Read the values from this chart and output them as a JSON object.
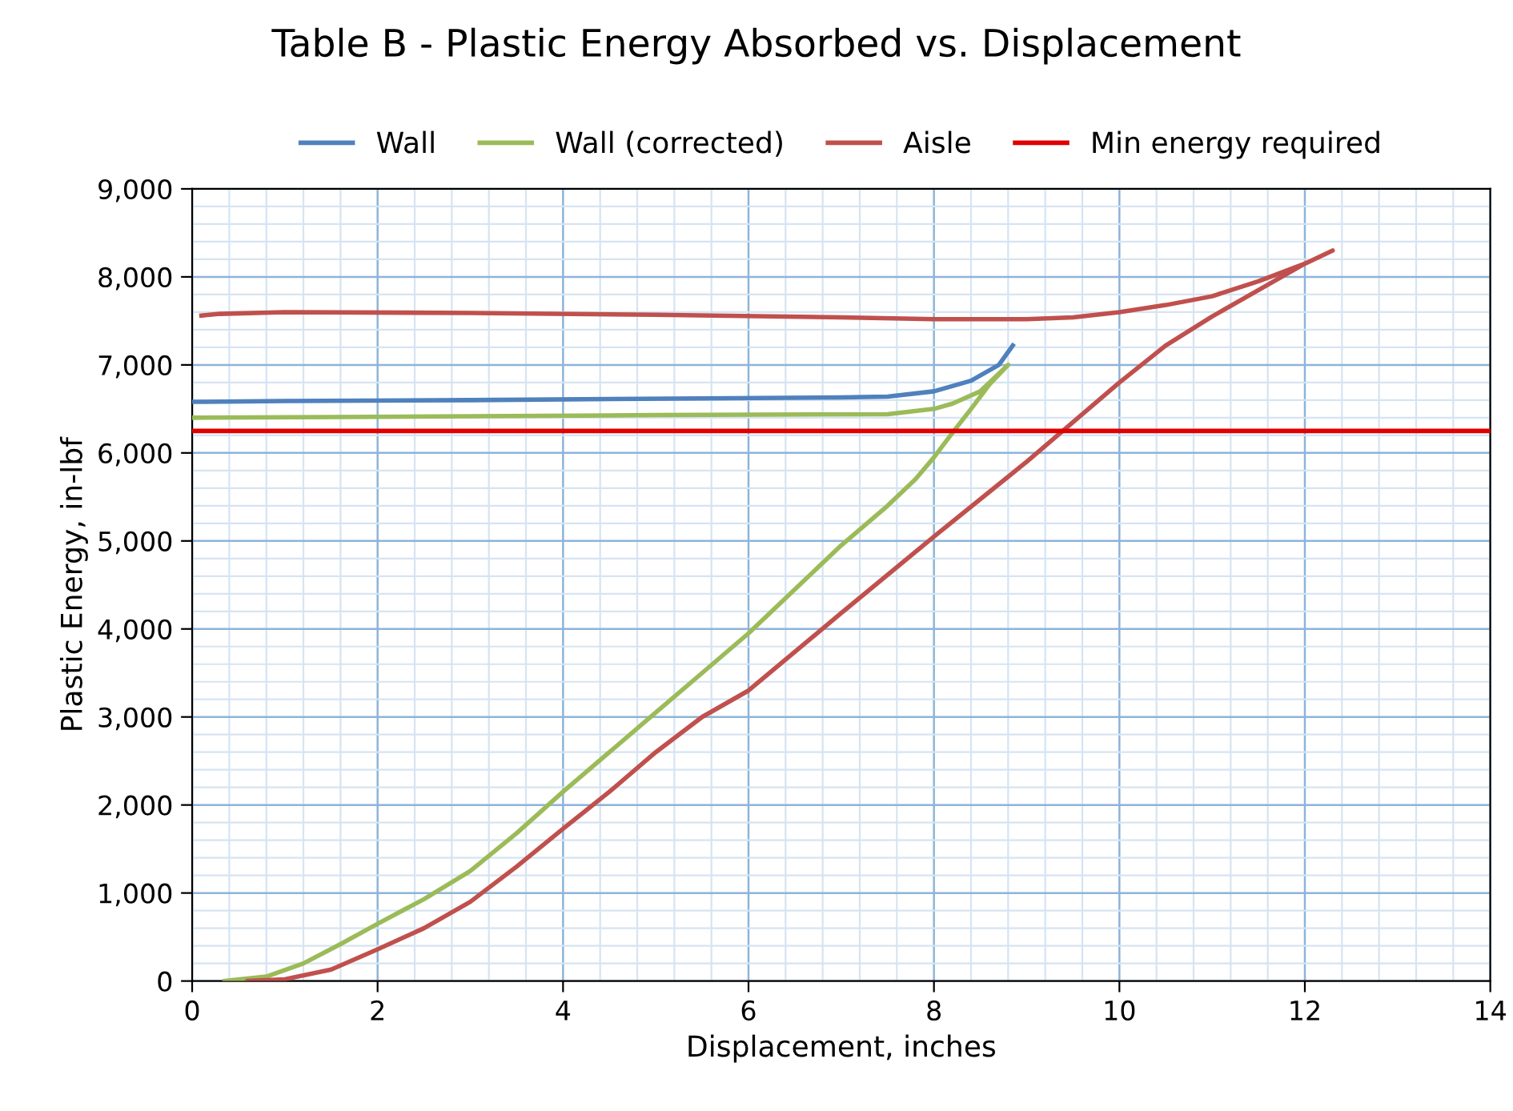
{
  "chart_data": {
    "type": "line",
    "title": "Table B - Plastic Energy Absorbed vs. Displacement",
    "xlabel": "Displacement, inches",
    "ylabel": "Plastic Energy, in-lbf",
    "xlim": [
      0,
      14
    ],
    "xticks": [
      0,
      2,
      4,
      6,
      8,
      10,
      12,
      14
    ],
    "ylim": [
      0,
      9000
    ],
    "yticks": [
      {
        "value": 0,
        "label": "0"
      },
      {
        "value": 1000,
        "label": "1,000"
      },
      {
        "value": 2000,
        "label": "2,000"
      },
      {
        "value": 3000,
        "label": "3,000"
      },
      {
        "value": 4000,
        "label": "4,000"
      },
      {
        "value": 5000,
        "label": "5,000"
      },
      {
        "value": 6000,
        "label": "6,000"
      },
      {
        "value": 7000,
        "label": "7,000"
      },
      {
        "value": 8000,
        "label": "8,000"
      },
      {
        "value": 9000,
        "label": "9,000"
      }
    ],
    "grid": true,
    "legend": "top",
    "marker": "none",
    "line_style": "solid",
    "series": [
      {
        "name": "Wall",
        "color": "#4f81bd",
        "x": [
          0,
          1,
          3,
          5.5,
          7,
          7.5,
          8,
          8.4,
          8.7,
          8.85
        ],
        "values": [
          6580,
          6590,
          6600,
          6620,
          6630,
          6640,
          6700,
          6820,
          7000,
          7220
        ]
      },
      {
        "name": "Wall (corrected)",
        "color": "#9bbb59",
        "x": [
          0.35,
          0.8,
          1.2,
          1.6,
          2,
          2.5,
          3,
          3.5,
          4,
          4.5,
          5,
          5.5,
          6,
          6.5,
          7,
          7.5,
          7.8,
          8,
          8.2,
          8.4,
          8.6,
          8.8,
          8.5,
          8.2,
          8,
          7.5,
          5,
          2,
          0
        ],
        "values": [
          0,
          50,
          200,
          420,
          650,
          930,
          1250,
          1680,
          2150,
          2600,
          3050,
          3500,
          3950,
          4450,
          4950,
          5400,
          5700,
          5950,
          6230,
          6500,
          6780,
          7000,
          6700,
          6560,
          6500,
          6440,
          6430,
          6410,
          6400
        ]
      },
      {
        "name": "Aisle",
        "color": "#c0504d",
        "x": [
          0.6,
          1,
          1.5,
          2,
          2.5,
          3,
          3.5,
          4,
          4.5,
          5,
          5.5,
          6,
          7,
          8,
          9,
          10,
          10.5,
          11,
          11.5,
          12,
          12.3,
          12,
          11.5,
          11,
          10.5,
          10,
          9.5,
          9,
          8,
          7,
          5,
          3,
          1,
          0.3,
          0.1
        ],
        "values": [
          0,
          20,
          130,
          360,
          600,
          900,
          1300,
          1730,
          2150,
          2600,
          3000,
          3300,
          4180,
          5050,
          5900,
          6800,
          7220,
          7550,
          7850,
          8150,
          8300,
          8150,
          7950,
          7780,
          7680,
          7600,
          7540,
          7520,
          7520,
          7540,
          7570,
          7590,
          7600,
          7580,
          7560
        ]
      },
      {
        "name": "Min energy required",
        "color": "#e00000",
        "x": [
          0,
          14
        ],
        "values": [
          6250,
          6250
        ]
      }
    ]
  }
}
